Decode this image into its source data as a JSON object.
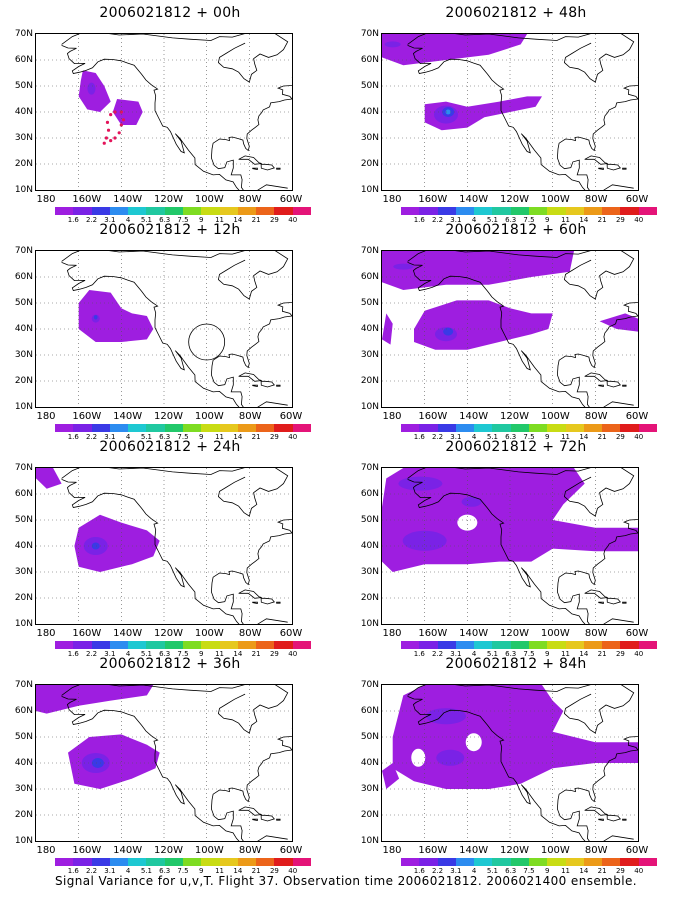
{
  "panels": [
    {
      "title": "2006021812 + 00h"
    },
    {
      "title": "2006021812 + 48h"
    },
    {
      "title": "2006021812 + 12h"
    },
    {
      "title": "2006021812 + 60h"
    },
    {
      "title": "2006021812 + 24h"
    },
    {
      "title": "2006021812 + 72h"
    },
    {
      "title": "2006021812 + 36h"
    },
    {
      "title": "2006021812 + 84h"
    }
  ],
  "lat_labels": [
    "70N",
    "60N",
    "50N",
    "40N",
    "30N",
    "20N",
    "10N"
  ],
  "lon_labels": [
    "180",
    "160W",
    "140W",
    "120W",
    "100W",
    "80W",
    "60W"
  ],
  "colorbar": {
    "labels": [
      "1.6",
      "2.2",
      "3.1",
      "4",
      "5.1",
      "6.3",
      "7.5",
      "9",
      "11",
      "14",
      "21",
      "29",
      "40"
    ],
    "colors": [
      "#9e1ee0",
      "#7a22e6",
      "#3a3ae6",
      "#2c8cf0",
      "#1ec8d2",
      "#20c8a0",
      "#22c86a",
      "#7edc22",
      "#c8dc14",
      "#e6c81e",
      "#ec9a18",
      "#ec641a",
      "#e01c1c",
      "#e41478"
    ]
  },
  "map_extent": {
    "lon_min": -180,
    "lon_max": -60,
    "lat_min": 10,
    "lat_max": 70
  },
  "footer": "Signal Variance for u,v,T. Flight 37. Observation time 2006021812. 2006021400 ensemble."
}
